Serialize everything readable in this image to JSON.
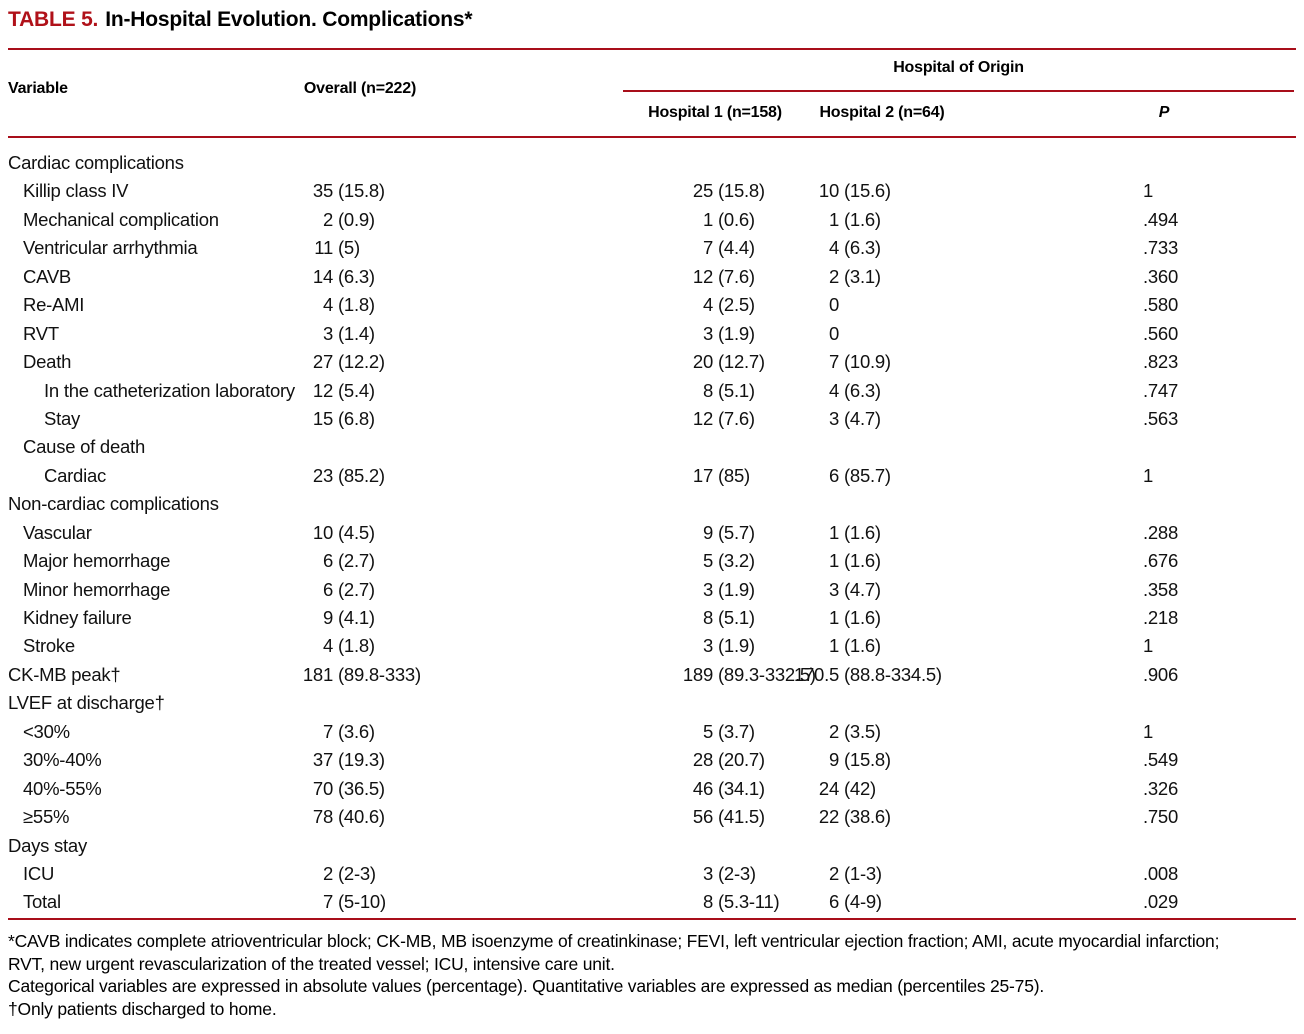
{
  "colors": {
    "rule_red": "#a80e1a",
    "title_red": "#b01119"
  },
  "title": {
    "label": "TABLE 5.",
    "text": "In-Hospital Evolution. Complications*"
  },
  "header": {
    "variable": "Variable",
    "overall": "Overall (n=222)",
    "origin_group": "Hospital of Origin",
    "hospital1": "Hospital 1 (n=158)",
    "hospital2": "Hospital 2 (n=64)",
    "p": "P"
  },
  "table": {
    "rows": [
      {
        "label": "Cardiac complications",
        "indent": 0,
        "overall": "",
        "h1": "",
        "h2": "",
        "p": ""
      },
      {
        "label": "Killip class IV",
        "indent": 1,
        "overall": "35 (15.8)",
        "h1": "25 (15.8)",
        "h2": "10 (15.6)",
        "p": "1"
      },
      {
        "label": "Mechanical complication",
        "indent": 1,
        "overall": "2 (0.9)",
        "h1": "1 (0.6)",
        "h2": "1 (1.6)",
        "p": ".494"
      },
      {
        "label": "Ventricular arrhythmia",
        "indent": 1,
        "overall": "11 (5)",
        "h1": "7 (4.4)",
        "h2": "4 (6.3)",
        "p": ".733"
      },
      {
        "label": "CAVB",
        "indent": 1,
        "overall": "14 (6.3)",
        "h1": "12 (7.6)",
        "h2": "2 (3.1)",
        "p": ".360"
      },
      {
        "label": "Re-AMI",
        "indent": 1,
        "overall": "4 (1.8)",
        "h1": "4 (2.5)",
        "h2": "0",
        "p": ".580"
      },
      {
        "label": "RVT",
        "indent": 1,
        "overall": "3 (1.4)",
        "h1": "3 (1.9)",
        "h2": "0",
        "p": ".560"
      },
      {
        "label": "Death",
        "indent": 1,
        "overall": "27 (12.2)",
        "h1": "20 (12.7)",
        "h2": "7 (10.9)",
        "p": ".823"
      },
      {
        "label": "In the catheterization laboratory",
        "indent": 2,
        "overall": "12 (5.4)",
        "h1": "8 (5.1)",
        "h2": "4 (6.3)",
        "p": ".747"
      },
      {
        "label": "Stay",
        "indent": 2,
        "overall": "15 (6.8)",
        "h1": "12 (7.6)",
        "h2": "3 (4.7)",
        "p": ".563"
      },
      {
        "label": "Cause of death",
        "indent": 1,
        "overall": "",
        "h1": "",
        "h2": "",
        "p": ""
      },
      {
        "label": "Cardiac",
        "indent": 2,
        "overall": "23 (85.2)",
        "h1": "17 (85)",
        "h2": "6 (85.7)",
        "p": "1"
      },
      {
        "label": "Non-cardiac complications",
        "indent": 0,
        "overall": "",
        "h1": "",
        "h2": "",
        "p": ""
      },
      {
        "label": "Vascular",
        "indent": 1,
        "overall": "10 (4.5)",
        "h1": "9 (5.7)",
        "h2": "1 (1.6)",
        "p": ".288"
      },
      {
        "label": "Major hemorrhage",
        "indent": 1,
        "overall": "6 (2.7)",
        "h1": "5 (3.2)",
        "h2": "1 (1.6)",
        "p": ".676"
      },
      {
        "label": "Minor hemorrhage",
        "indent": 1,
        "overall": "6 (2.7)",
        "h1": "3 (1.9)",
        "h2": "3 (4.7)",
        "p": ".358"
      },
      {
        "label": "Kidney failure",
        "indent": 1,
        "overall": "9 (4.1)",
        "h1": "8 (5.1)",
        "h2": "1 (1.6)",
        "p": ".218"
      },
      {
        "label": "Stroke",
        "indent": 1,
        "overall": "4 (1.8)",
        "h1": "3 (1.9)",
        "h2": "1 (1.6)",
        "p": "1"
      },
      {
        "label": "CK-MB peak†",
        "indent": 0,
        "overall": "181 (89.8-333)",
        "h1": "189 (89.3-332.5)",
        "h2": "170.5 (88.8-334.5)",
        "p": ".906"
      },
      {
        "label": "LVEF at discharge†",
        "indent": 0,
        "overall": "",
        "h1": "",
        "h2": "",
        "p": ""
      },
      {
        "label": "<30%",
        "indent": 1,
        "overall": "7 (3.6)",
        "h1": "5 (3.7)",
        "h2": "2 (3.5)",
        "p": "1"
      },
      {
        "label": "30%-40%",
        "indent": 1,
        "overall": "37 (19.3)",
        "h1": "28 (20.7)",
        "h2": "9 (15.8)",
        "p": ".549"
      },
      {
        "label": "40%-55%",
        "indent": 1,
        "overall": "70 (36.5)",
        "h1": "46 (34.1)",
        "h2": "24 (42)",
        "p": ".326"
      },
      {
        "label": "≥55%",
        "indent": 1,
        "overall": "78 (40.6)",
        "h1": "56 (41.5)",
        "h2": "22 (38.6)",
        "p": ".750"
      },
      {
        "label": "Days stay",
        "indent": 0,
        "overall": "",
        "h1": "",
        "h2": "",
        "p": ""
      },
      {
        "label": "ICU",
        "indent": 1,
        "overall": "2 (2-3)",
        "h1": "3 (2-3)",
        "h2": "2 (1-3)",
        "p": ".008"
      },
      {
        "label": "Total",
        "indent": 1,
        "overall": "7 (5-10)",
        "h1": "8 (5.3-11)",
        "h2": "6 (4-9)",
        "p": ".029"
      }
    ]
  },
  "footnotes": [
    "*CAVB indicates complete atrioventricular block; CK-MB, MB isoenzyme of creatinkinase; FEVI, left ventricular ejection fraction; AMI, acute myocardial infarction; RVT, new urgent revascularization of the treated vessel; ICU, intensive care unit.",
    "Categorical variables are expressed in absolute values (percentage). Quantitative variables are expressed as median (percentiles 25-75).",
    "†Only patients discharged to home."
  ]
}
